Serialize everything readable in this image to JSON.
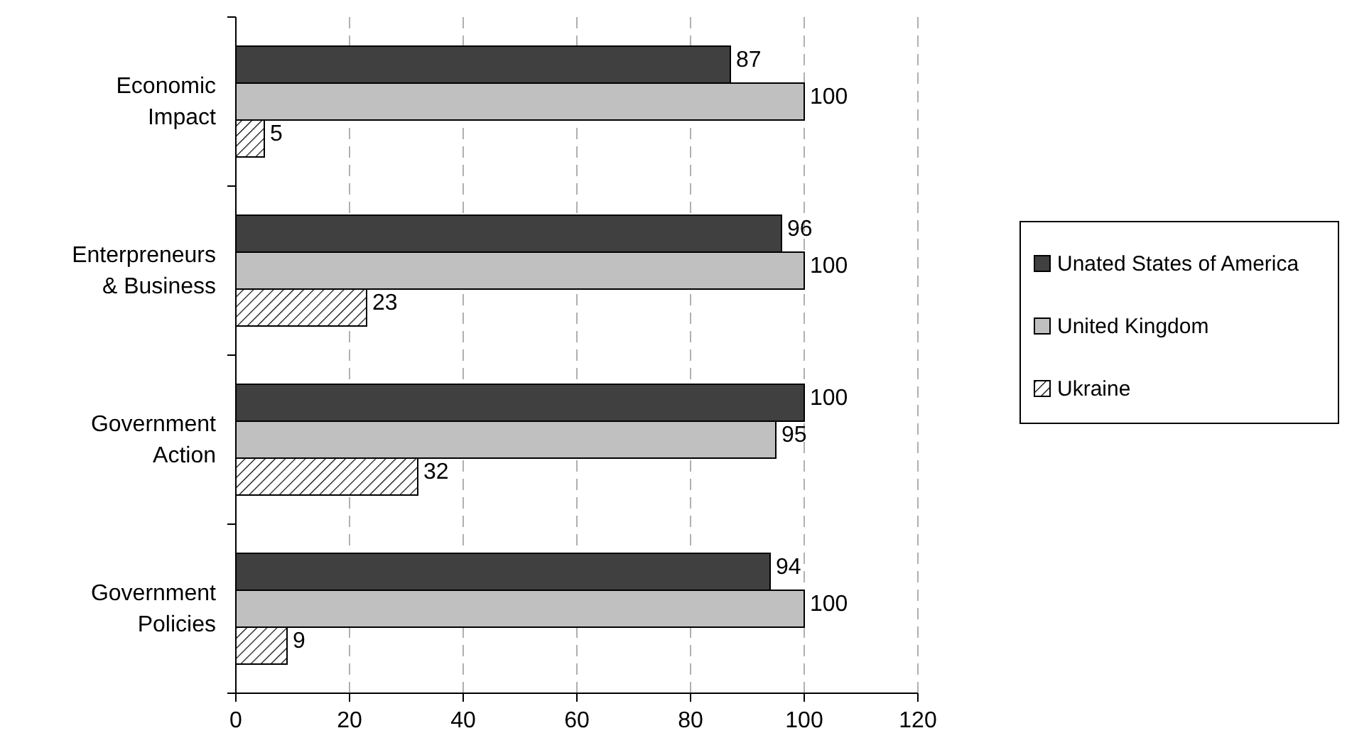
{
  "chart_data": {
    "type": "bar",
    "orientation": "horizontal",
    "categories": [
      "Economic Impact",
      "Enterpreneurs & Business",
      "Government Action",
      "Government Policies"
    ],
    "series": [
      {
        "name": "Unated States of America",
        "color": "#404040",
        "values": [
          87,
          96,
          100,
          94
        ]
      },
      {
        "name": "United Kingdom",
        "color": "#c0c0c0",
        "values": [
          100,
          100,
          95,
          100
        ]
      },
      {
        "name": "Ukraine",
        "color": "#000000",
        "values": [
          5,
          23,
          32,
          9
        ]
      }
    ],
    "xlim": [
      0,
      120
    ],
    "xticks": [
      0,
      20,
      40,
      60,
      80,
      100,
      120
    ],
    "grid": "x",
    "legend": "right",
    "data_labels": true
  }
}
